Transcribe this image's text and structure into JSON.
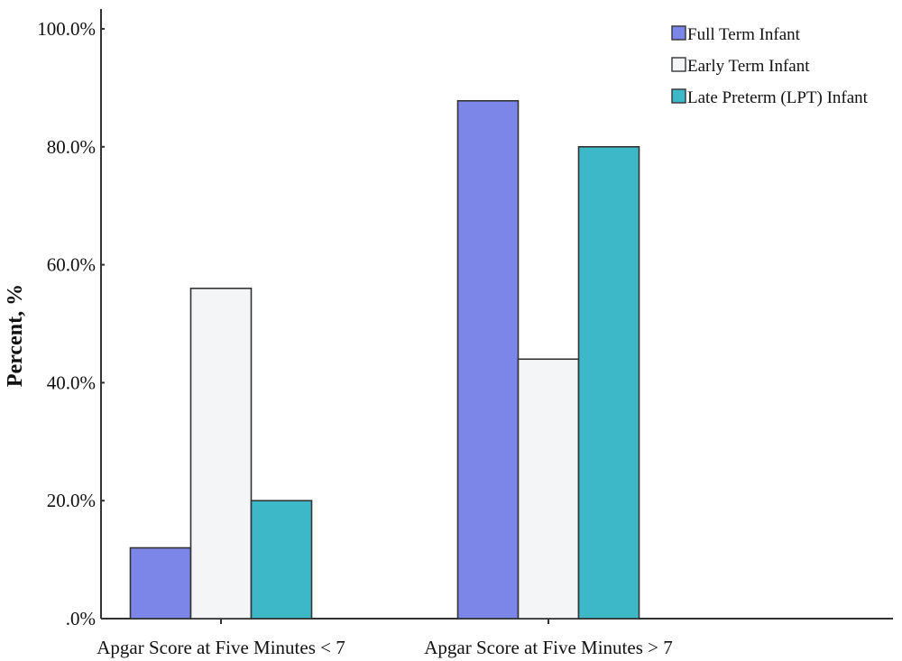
{
  "chart_data": {
    "type": "bar",
    "categories": [
      "Apgar Score at Five Minutes < 7",
      "Apgar Score at Five Minutes > 7"
    ],
    "series": [
      {
        "name": "Full Term Infant",
        "color": "#7b86e8",
        "values": [
          12.0,
          87.8
        ]
      },
      {
        "name": "Early Term Infant",
        "color": "#f4f5f7",
        "values": [
          56.0,
          44.0
        ]
      },
      {
        "name": "Late Preterm (LPT) Infant",
        "color": "#3db8c9",
        "values": [
          20.0,
          80.0
        ]
      }
    ],
    "title": "",
    "xlabel": "",
    "ylabel": "Percent, %",
    "ylim": [
      0,
      100
    ],
    "yticks": [
      {
        "value": 0,
        "label": ".0%"
      },
      {
        "value": 20,
        "label": "20.0%"
      },
      {
        "value": 40,
        "label": "40.0%"
      },
      {
        "value": 60,
        "label": "60.0%"
      },
      {
        "value": 80,
        "label": "80.0%"
      },
      {
        "value": 100,
        "label": "100.0%"
      }
    ],
    "grid": false,
    "legend_position": "top-right"
  }
}
